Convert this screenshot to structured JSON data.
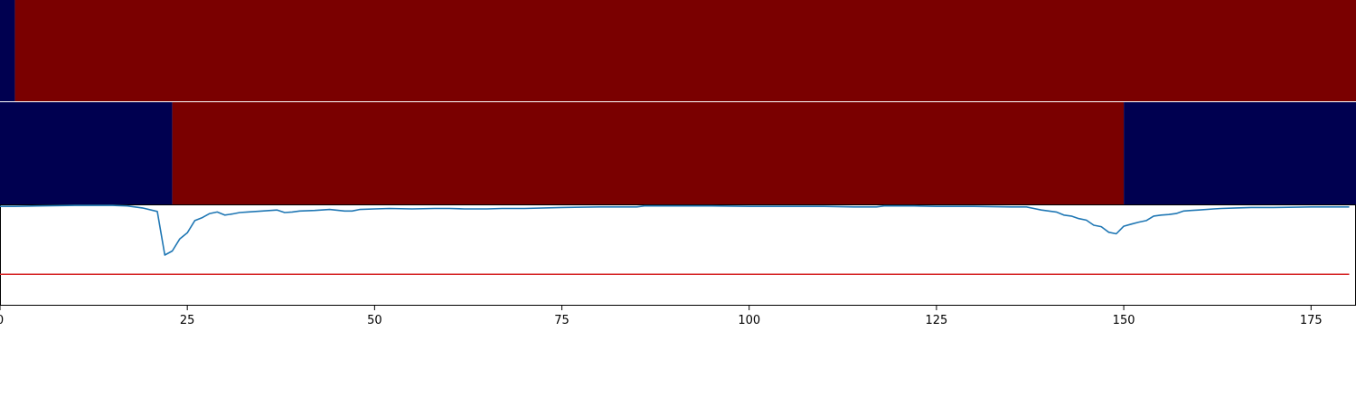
{
  "colors": {
    "low": "#000050",
    "high": "#7a0000",
    "signal": "#1f77b4",
    "threshold": "#d62728",
    "axis": "#000000",
    "background": "#ffffff"
  },
  "chart_data": [
    {
      "type": "heatmap",
      "title": "",
      "xlabel": "",
      "ylabel": "",
      "xlim": [
        0,
        181
      ],
      "segments": [
        {
          "start": 0,
          "end": 2,
          "state": "low"
        },
        {
          "start": 2,
          "end": 181,
          "state": "high"
        }
      ]
    },
    {
      "type": "heatmap",
      "title": "",
      "xlabel": "",
      "ylabel": "",
      "xlim": [
        0,
        181
      ],
      "segments": [
        {
          "start": 0,
          "end": 23,
          "state": "low"
        },
        {
          "start": 23,
          "end": 150,
          "state": "high"
        },
        {
          "start": 150,
          "end": 181,
          "state": "low"
        }
      ]
    },
    {
      "type": "line",
      "title": "",
      "xlabel": "",
      "ylabel": "",
      "xlim": [
        0,
        181
      ],
      "ylim": [
        0,
        1
      ],
      "xticks": [
        0,
        25,
        50,
        75,
        100,
        125,
        150,
        175
      ],
      "xtick_labels": [
        "0",
        "25",
        "50",
        "75",
        "100",
        "125",
        "150",
        "175"
      ],
      "grid": false,
      "threshold": 0.31,
      "series": [
        {
          "points": [
            [
              0,
              0.98
            ],
            [
              2,
              0.98
            ],
            [
              5,
              0.985
            ],
            [
              10,
              0.99
            ],
            [
              15,
              0.99
            ],
            [
              17,
              0.985
            ],
            [
              19,
              0.965
            ],
            [
              21,
              0.93
            ],
            [
              22,
              0.5
            ],
            [
              23,
              0.54
            ],
            [
              24,
              0.66
            ],
            [
              25,
              0.72
            ],
            [
              26,
              0.84
            ],
            [
              27,
              0.87
            ],
            [
              28,
              0.91
            ],
            [
              29,
              0.925
            ],
            [
              30,
              0.895
            ],
            [
              31,
              0.905
            ],
            [
              32,
              0.92
            ],
            [
              33,
              0.925
            ],
            [
              35,
              0.935
            ],
            [
              37,
              0.945
            ],
            [
              38,
              0.92
            ],
            [
              39,
              0.925
            ],
            [
              40,
              0.935
            ],
            [
              42,
              0.94
            ],
            [
              44,
              0.95
            ],
            [
              46,
              0.935
            ],
            [
              47,
              0.935
            ],
            [
              48,
              0.95
            ],
            [
              50,
              0.955
            ],
            [
              52,
              0.96
            ],
            [
              55,
              0.955
            ],
            [
              58,
              0.96
            ],
            [
              60,
              0.96
            ],
            [
              62,
              0.955
            ],
            [
              65,
              0.955
            ],
            [
              67,
              0.96
            ],
            [
              70,
              0.96
            ],
            [
              75,
              0.97
            ],
            [
              80,
              0.975
            ],
            [
              85,
              0.975
            ],
            [
              86,
              0.985
            ],
            [
              90,
              0.985
            ],
            [
              95,
              0.985
            ],
            [
              100,
              0.98
            ],
            [
              105,
              0.98
            ],
            [
              110,
              0.98
            ],
            [
              114,
              0.975
            ],
            [
              117,
              0.975
            ],
            [
              118,
              0.985
            ],
            [
              122,
              0.985
            ],
            [
              125,
              0.98
            ],
            [
              130,
              0.98
            ],
            [
              135,
              0.975
            ],
            [
              137,
              0.975
            ],
            [
              138,
              0.96
            ],
            [
              139,
              0.945
            ],
            [
              140,
              0.935
            ],
            [
              141,
              0.925
            ],
            [
              142,
              0.895
            ],
            [
              143,
              0.885
            ],
            [
              144,
              0.86
            ],
            [
              145,
              0.845
            ],
            [
              146,
              0.795
            ],
            [
              147,
              0.78
            ],
            [
              148,
              0.725
            ],
            [
              149,
              0.71
            ],
            [
              150,
              0.785
            ],
            [
              151,
              0.805
            ],
            [
              152,
              0.825
            ],
            [
              153,
              0.84
            ],
            [
              154,
              0.885
            ],
            [
              155,
              0.895
            ],
            [
              156,
              0.9
            ],
            [
              157,
              0.91
            ],
            [
              158,
              0.935
            ],
            [
              159,
              0.94
            ],
            [
              160,
              0.945
            ],
            [
              162,
              0.955
            ],
            [
              163,
              0.96
            ],
            [
              165,
              0.965
            ],
            [
              167,
              0.97
            ],
            [
              170,
              0.97
            ],
            [
              175,
              0.975
            ],
            [
              181,
              0.975
            ]
          ]
        }
      ]
    }
  ]
}
